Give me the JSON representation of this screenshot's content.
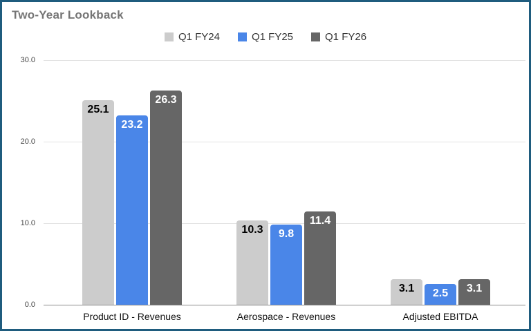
{
  "title": "Two-Year Lookback",
  "colors": {
    "frame_border": "#1f5c7e",
    "title_text": "#757575",
    "legend_text": "#333333",
    "gridline": "#e2e2e2",
    "axis_line": "#8a8a8a",
    "tick_text": "#464646",
    "category_text": "#111111"
  },
  "chart_data": {
    "type": "bar",
    "title": "Two-Year Lookback",
    "categories": [
      "Product ID - Revenues",
      "Aerospace - Revenues",
      "Adjusted EBITDA"
    ],
    "series": [
      {
        "name": "Q1 FY24",
        "color": "#cccccc",
        "label_color": "#000000",
        "values": [
          25.1,
          10.3,
          3.1
        ]
      },
      {
        "name": "Q1 FY25",
        "color": "#4a86e8",
        "label_color": "#ffffff",
        "values": [
          23.2,
          9.8,
          2.5
        ]
      },
      {
        "name": "Q1 FY26",
        "color": "#666666",
        "label_color": "#ffffff",
        "values": [
          26.3,
          11.4,
          3.1
        ]
      }
    ],
    "y_ticks": [
      {
        "v": 30,
        "label": "30.0"
      },
      {
        "v": 20,
        "label": "20.0"
      },
      {
        "v": 10,
        "label": "10.0"
      },
      {
        "v": 0,
        "label": "0.0"
      }
    ],
    "ylim": [
      0,
      30
    ],
    "grid": true,
    "legend_position": "top-center",
    "xlabel": "",
    "ylabel": ""
  }
}
